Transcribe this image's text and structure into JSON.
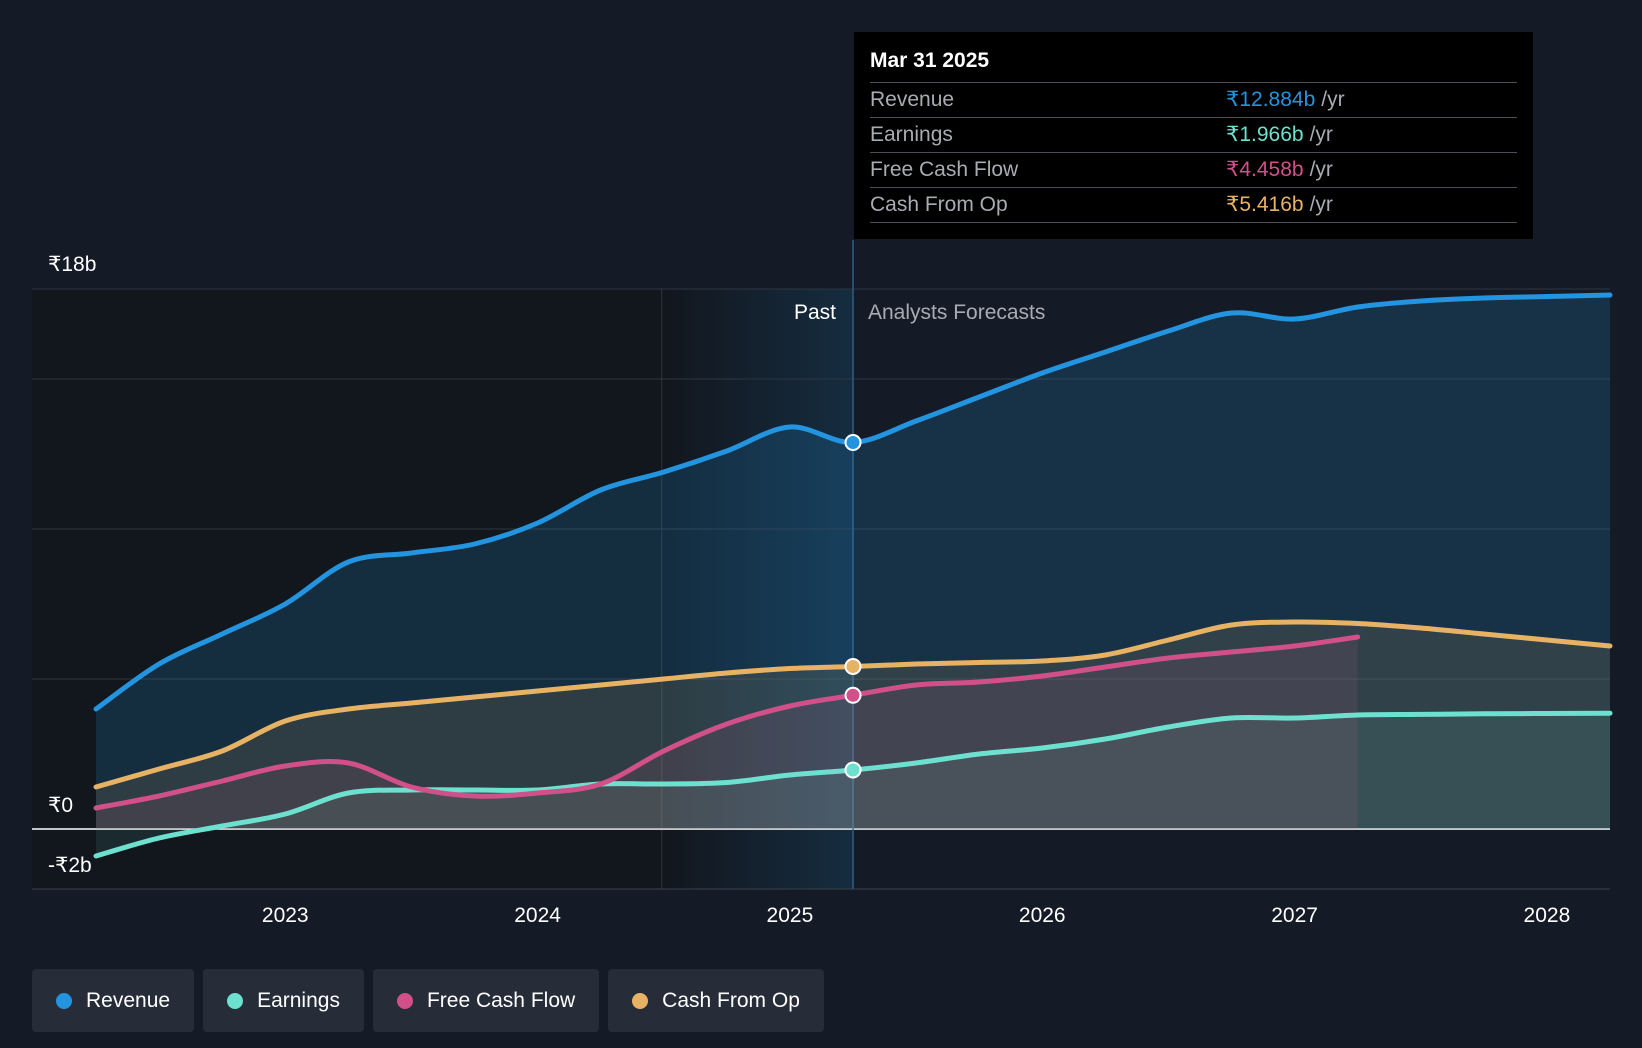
{
  "chart_data": {
    "type": "area",
    "x_ticks": [
      "2023",
      "2024",
      "2025",
      "2026",
      "2027",
      "2028"
    ],
    "y_ticks": [
      {
        "value": 18,
        "label": "₹18b"
      },
      {
        "value": 0,
        "label": "₹0"
      },
      {
        "value": -2,
        "label": "-₹2b"
      }
    ],
    "ylim": [
      -2,
      18
    ],
    "xlim": [
      2022.25,
      2028.25
    ],
    "divider_x": 2025.25,
    "past_label": "Past",
    "forecast_label": "Analysts Forecasts",
    "series": [
      {
        "name": "Revenue",
        "color": "#2394df",
        "points": [
          [
            2022.25,
            4.0
          ],
          [
            2022.5,
            5.5
          ],
          [
            2022.75,
            6.5
          ],
          [
            2023.0,
            7.5
          ],
          [
            2023.25,
            8.9
          ],
          [
            2023.5,
            9.2
          ],
          [
            2023.75,
            9.5
          ],
          [
            2024.0,
            10.2
          ],
          [
            2024.25,
            11.3
          ],
          [
            2024.5,
            11.9
          ],
          [
            2024.75,
            12.6
          ],
          [
            2025.0,
            13.4
          ],
          [
            2025.25,
            12.884
          ],
          [
            2025.5,
            13.6
          ],
          [
            2025.75,
            14.4
          ],
          [
            2026.0,
            15.2
          ],
          [
            2026.25,
            15.9
          ],
          [
            2026.5,
            16.6
          ],
          [
            2026.75,
            17.2
          ],
          [
            2027.0,
            17.0
          ],
          [
            2027.25,
            17.4
          ],
          [
            2027.5,
            17.6
          ],
          [
            2027.75,
            17.7
          ],
          [
            2028.0,
            17.75
          ],
          [
            2028.25,
            17.8
          ]
        ]
      },
      {
        "name": "Earnings",
        "color": "#6ee0cf",
        "points": [
          [
            2022.25,
            -0.9
          ],
          [
            2022.5,
            -0.3
          ],
          [
            2022.75,
            0.1
          ],
          [
            2023.0,
            0.5
          ],
          [
            2023.25,
            1.2
          ],
          [
            2023.5,
            1.3
          ],
          [
            2023.75,
            1.3
          ],
          [
            2024.0,
            1.3
          ],
          [
            2024.25,
            1.5
          ],
          [
            2024.5,
            1.5
          ],
          [
            2024.75,
            1.55
          ],
          [
            2025.0,
            1.8
          ],
          [
            2025.25,
            1.966
          ],
          [
            2025.5,
            2.2
          ],
          [
            2025.75,
            2.5
          ],
          [
            2026.0,
            2.7
          ],
          [
            2026.25,
            3.0
          ],
          [
            2026.5,
            3.4
          ],
          [
            2026.75,
            3.7
          ],
          [
            2027.0,
            3.7
          ],
          [
            2027.25,
            3.8
          ],
          [
            2027.5,
            3.82
          ],
          [
            2027.75,
            3.84
          ],
          [
            2028.0,
            3.85
          ],
          [
            2028.25,
            3.86
          ]
        ]
      },
      {
        "name": "Free Cash Flow",
        "color": "#d1508a",
        "points": [
          [
            2022.25,
            0.7
          ],
          [
            2022.5,
            1.1
          ],
          [
            2022.75,
            1.6
          ],
          [
            2023.0,
            2.1
          ],
          [
            2023.25,
            2.2
          ],
          [
            2023.5,
            1.4
          ],
          [
            2023.75,
            1.1
          ],
          [
            2024.0,
            1.2
          ],
          [
            2024.25,
            1.5
          ],
          [
            2024.5,
            2.6
          ],
          [
            2024.75,
            3.5
          ],
          [
            2025.0,
            4.1
          ],
          [
            2025.25,
            4.458
          ],
          [
            2025.5,
            4.8
          ],
          [
            2025.75,
            4.9
          ],
          [
            2026.0,
            5.1
          ],
          [
            2026.25,
            5.4
          ],
          [
            2026.5,
            5.7
          ],
          [
            2026.75,
            5.9
          ],
          [
            2027.0,
            6.1
          ],
          [
            2027.25,
            6.4
          ]
        ]
      },
      {
        "name": "Cash From Op",
        "color": "#e8b264",
        "points": [
          [
            2022.25,
            1.4
          ],
          [
            2022.5,
            2.0
          ],
          [
            2022.75,
            2.6
          ],
          [
            2023.0,
            3.6
          ],
          [
            2023.25,
            4.0
          ],
          [
            2023.5,
            4.2
          ],
          [
            2023.75,
            4.4
          ],
          [
            2024.0,
            4.6
          ],
          [
            2024.25,
            4.8
          ],
          [
            2024.5,
            5.0
          ],
          [
            2024.75,
            5.2
          ],
          [
            2025.0,
            5.35
          ],
          [
            2025.25,
            5.416
          ],
          [
            2025.5,
            5.5
          ],
          [
            2025.75,
            5.55
          ],
          [
            2026.0,
            5.6
          ],
          [
            2026.25,
            5.8
          ],
          [
            2026.5,
            6.3
          ],
          [
            2026.75,
            6.8
          ],
          [
            2027.0,
            6.9
          ],
          [
            2027.25,
            6.85
          ],
          [
            2027.5,
            6.7
          ],
          [
            2027.75,
            6.5
          ],
          [
            2028.0,
            6.3
          ],
          [
            2028.25,
            6.1
          ]
        ]
      }
    ]
  },
  "tooltip": {
    "date": "Mar 31 2025",
    "rows": [
      {
        "label": "Revenue",
        "value": "₹12.884b",
        "unit": "/yr",
        "color": "#2394df"
      },
      {
        "label": "Earnings",
        "value": "₹1.966b",
        "unit": "/yr",
        "color": "#6ee0cf"
      },
      {
        "label": "Free Cash Flow",
        "value": "₹4.458b",
        "unit": "/yr",
        "color": "#d1508a"
      },
      {
        "label": "Cash From Op",
        "value": "₹5.416b",
        "unit": "/yr",
        "color": "#e8b264"
      }
    ]
  },
  "legend": [
    {
      "label": "Revenue",
      "color": "#2394df"
    },
    {
      "label": "Earnings",
      "color": "#6ee0cf"
    },
    {
      "label": "Free Cash Flow",
      "color": "#d1508a"
    },
    {
      "label": "Cash From Op",
      "color": "#e8b264"
    }
  ]
}
